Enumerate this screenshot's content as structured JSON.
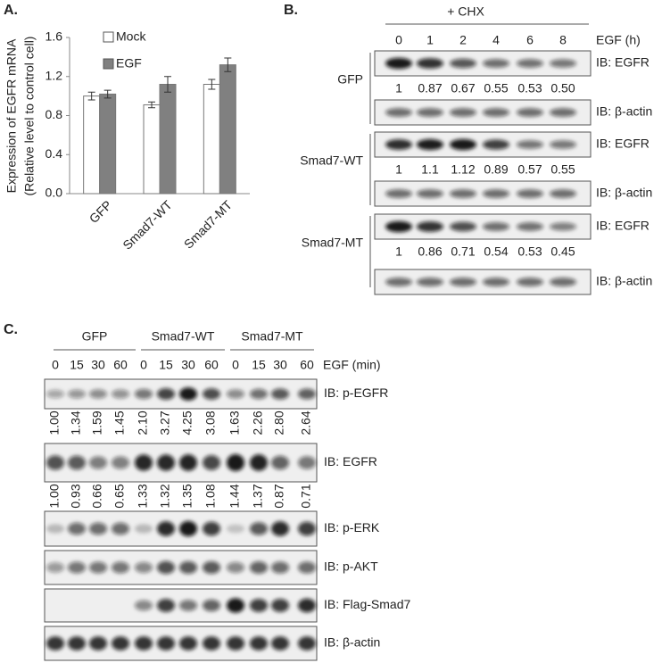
{
  "panels": {
    "a": "A.",
    "b": "B.",
    "c": "C."
  },
  "chart_data": {
    "type": "bar",
    "y_label": [
      "Expression of EGFR mRNA",
      "(Relative level to control cell)"
    ],
    "categories": [
      "GFP",
      "Smad7-WT",
      "Smad7-MT"
    ],
    "series": [
      {
        "name": "Mock",
        "color": "#ffffff",
        "values": [
          1.0,
          0.91,
          1.12
        ],
        "errors": [
          0.04,
          0.03,
          0.05
        ]
      },
      {
        "name": "EGF",
        "color": "#808080",
        "values": [
          1.02,
          1.12,
          1.32
        ],
        "errors": [
          0.04,
          0.08,
          0.07
        ]
      }
    ],
    "ylim": [
      0,
      1.6
    ],
    "yticks": [
      {
        "value": 0,
        "label": "0.0"
      },
      0.4,
      0.8,
      1.2,
      1.6
    ],
    "legend": "upper left"
  },
  "blot_b": {
    "header": "+ CHX",
    "lanes": [
      "0",
      "1",
      "2",
      "4",
      "6",
      "8"
    ],
    "lane_unit": "EGF (h)",
    "groups": [
      {
        "name": "GFP",
        "blots": [
          {
            "label": "IB:  EGFR",
            "quant": [
              "1",
              "0.87",
              "0.67",
              "0.55",
              "0.53",
              "0.50"
            ]
          },
          {
            "label": "IB: β-actin"
          }
        ]
      },
      {
        "name": "Smad7-WT",
        "blots": [
          {
            "label": "IB:  EGFR",
            "quant": [
              "1",
              "1.1",
              "1.12",
              "0.89",
              "0.57",
              "0.55"
            ]
          },
          {
            "label": "IB: β-actin"
          }
        ]
      },
      {
        "name": "Smad7-MT",
        "blots": [
          {
            "label": "IB:  EGFR",
            "quant": [
              "1",
              "0.86",
              "0.71",
              "0.54",
              "0.53",
              "0.45"
            ]
          },
          {
            "label": "IB: β-actin"
          }
        ]
      }
    ]
  },
  "blot_c": {
    "groups": [
      "GFP",
      "Smad7-WT",
      "Smad7-MT"
    ],
    "lanes": [
      "0",
      "15",
      "30",
      "60",
      "0",
      "15",
      "30",
      "60",
      "0",
      "15",
      "30",
      "60"
    ],
    "lane_unit": "EGF (min)",
    "blots": [
      {
        "label": "IB: p-EGFR",
        "quant": [
          "1.00",
          "1.34",
          "1.59",
          "1.45",
          "2.10",
          "3.27",
          "4.25",
          "3.08",
          "1.63",
          "2.26",
          "2.80",
          "2.64"
        ]
      },
      {
        "label": "IB: EGFR",
        "quant": [
          "1.00",
          "0.93",
          "0.66",
          "0.65",
          "1.33",
          "1.32",
          "1.35",
          "1.08",
          "1.44",
          "1.37",
          "0.87",
          "0.71"
        ]
      },
      {
        "label": "IB: p-ERK"
      },
      {
        "label": "IB: p-AKT"
      },
      {
        "label": "IB: Flag-Smad7"
      },
      {
        "label": "IB: β-actin"
      }
    ]
  }
}
